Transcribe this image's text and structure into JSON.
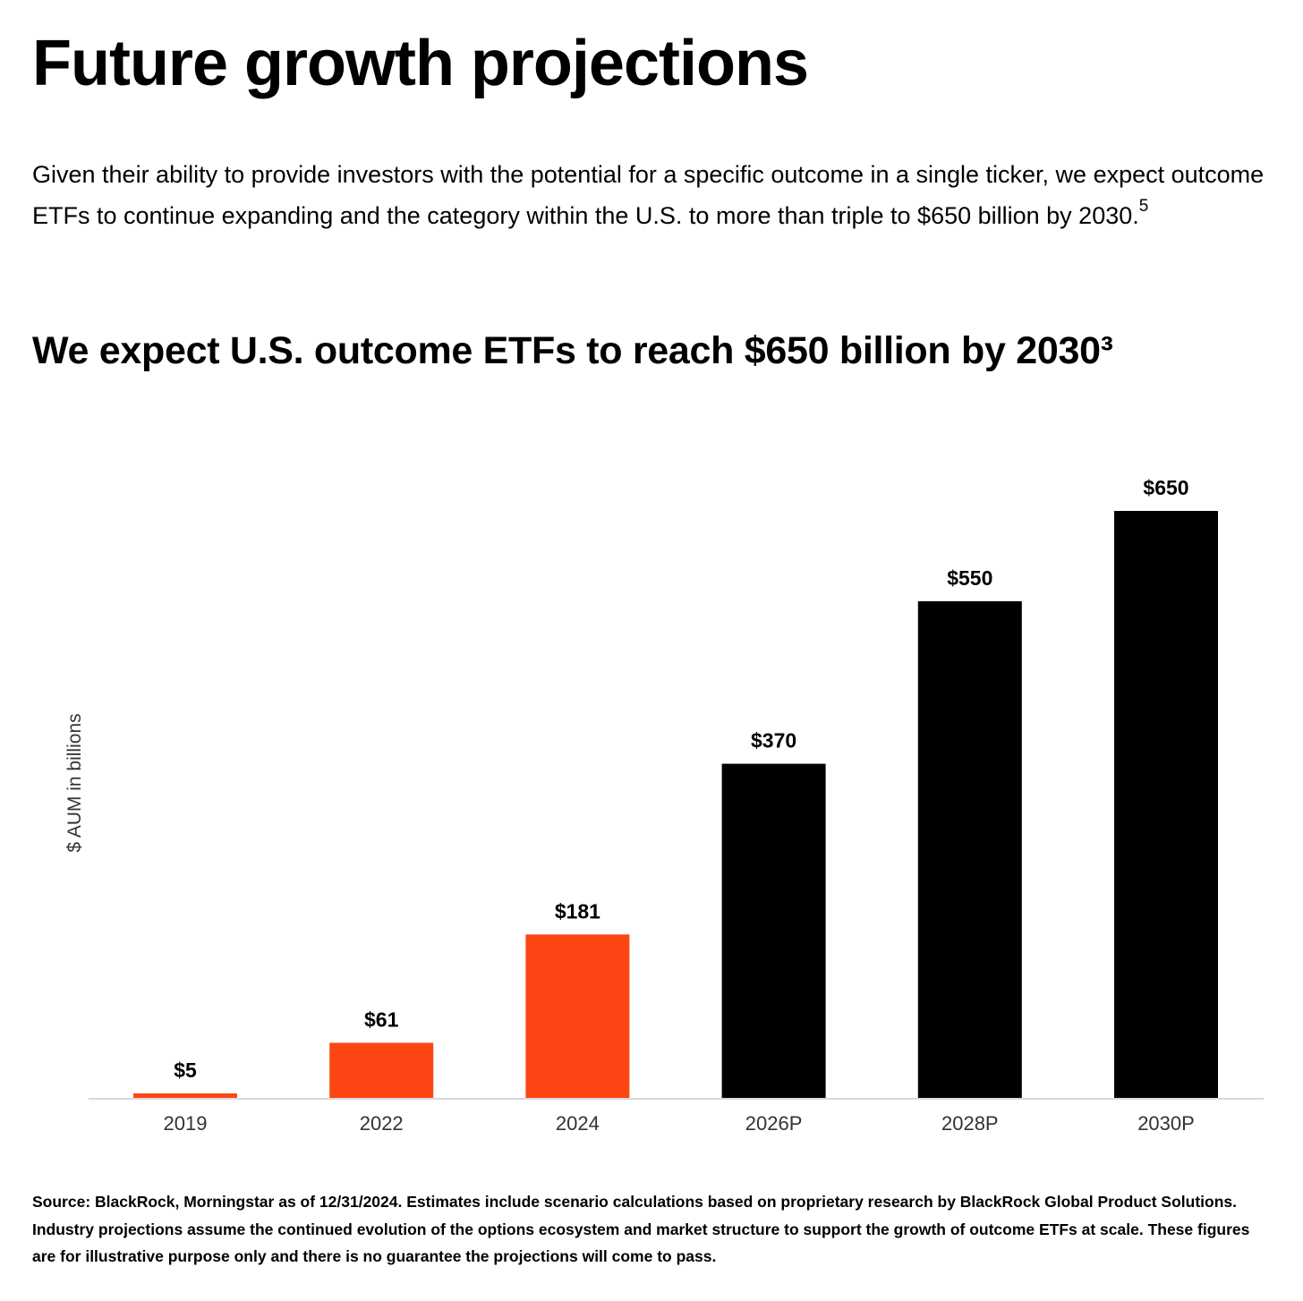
{
  "page": {
    "title": "Future growth projections",
    "intro": "Given their ability to provide investors with the potential for a specific outcome in a single ticker, we expect outcome ETFs to continue expanding and the category within the U.S. to more than triple to $650 billion by 2030.",
    "intro_footnote_ref": "5",
    "footnote": "Source: BlackRock, Morningstar as of 12/31/2024. Estimates include scenario calculations based on proprietary research by BlackRock Global Product Solutions. Industry projections assume the continued evolution of the options ecosystem and market structure to support the growth of outcome ETFs at scale. These figures are for illustrative purpose only and there is no guarantee the projections will come to pass."
  },
  "colors": {
    "actual": "#fc4714",
    "projected": "#000000",
    "axis": "#d9d9d9",
    "label": "#000000",
    "tick": "#333333"
  },
  "chart_data": {
    "type": "bar",
    "title": "We expect U.S. outcome ETFs to reach $650 billion by 2030³",
    "xlabel": "",
    "ylabel": "$ AUM in billions",
    "ylim": [
      0,
      650
    ],
    "grid": false,
    "categories": [
      "2019",
      "2022",
      "2024",
      "2026P",
      "2028P",
      "2030P"
    ],
    "values": [
      5,
      61,
      181,
      370,
      550,
      650
    ],
    "value_labels": [
      "$5",
      "$61",
      "$181",
      "$370",
      "$550",
      "$650"
    ],
    "series_kind": [
      "actual",
      "actual",
      "actual",
      "projected",
      "projected",
      "projected"
    ]
  }
}
